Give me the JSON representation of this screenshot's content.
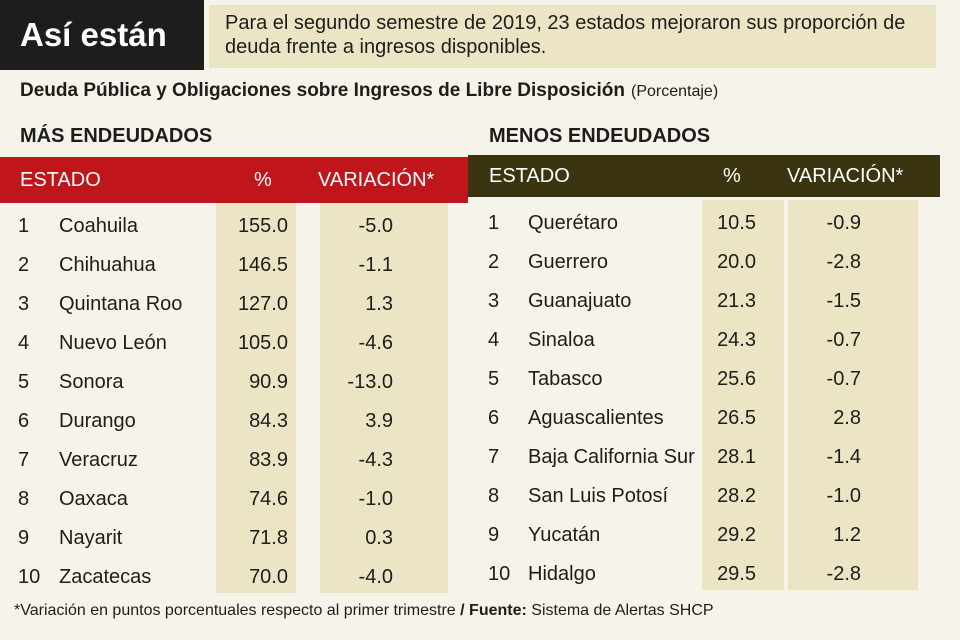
{
  "header": {
    "title": "Así están",
    "note": "Para el segundo semestre de 2019, 23 estados mejoraron sus proporción de deuda frente a ingresos disponibles."
  },
  "subtitle": {
    "text": "Deuda Pública y Obligaciones sobre Ingresos de Libre Disposición",
    "unit": "(Porcentaje)"
  },
  "colors": {
    "left_header": "#c0161b",
    "right_header": "#3a3510",
    "column_fill": "#ece5c5"
  },
  "left": {
    "title": "MÁS ENDEUDADOS",
    "headers": {
      "estado": "ESTADO",
      "pct": "%",
      "var": "VARIACIÓN*"
    },
    "rows": [
      {
        "rank": "1",
        "estado": "Coahuila",
        "pct": "155.0",
        "var": "-5.0"
      },
      {
        "rank": "2",
        "estado": "Chihuahua",
        "pct": "146.5",
        "var": "-1.1"
      },
      {
        "rank": "3",
        "estado": "Quintana Roo",
        "pct": "127.0",
        "var": "1.3"
      },
      {
        "rank": "4",
        "estado": "Nuevo León",
        "pct": "105.0",
        "var": "-4.6"
      },
      {
        "rank": "5",
        "estado": "Sonora",
        "pct": "90.9",
        "var": "-13.0"
      },
      {
        "rank": "6",
        "estado": "Durango",
        "pct": "84.3",
        "var": "3.9"
      },
      {
        "rank": "7",
        "estado": "Veracruz",
        "pct": "83.9",
        "var": "-4.3"
      },
      {
        "rank": "8",
        "estado": "Oaxaca",
        "pct": "74.6",
        "var": "-1.0"
      },
      {
        "rank": "9",
        "estado": "Nayarit",
        "pct": "71.8",
        "var": "0.3"
      },
      {
        "rank": "10",
        "estado": "Zacatecas",
        "pct": "70.0",
        "var": "-4.0"
      }
    ]
  },
  "right": {
    "title": "MENOS ENDEUDADOS",
    "headers": {
      "estado": "ESTADO",
      "pct": "%",
      "var": "VARIACIÓN*"
    },
    "rows": [
      {
        "rank": "1",
        "estado": "Querétaro",
        "pct": "10.5",
        "var": "-0.9"
      },
      {
        "rank": "2",
        "estado": "Guerrero",
        "pct": "20.0",
        "var": "-2.8"
      },
      {
        "rank": "3",
        "estado": "Guanajuato",
        "pct": "21.3",
        "var": "-1.5"
      },
      {
        "rank": "4",
        "estado": "Sinaloa",
        "pct": "24.3",
        "var": "-0.7"
      },
      {
        "rank": "5",
        "estado": "Tabasco",
        "pct": "25.6",
        "var": "-0.7"
      },
      {
        "rank": "6",
        "estado": "Aguascalientes",
        "pct": "26.5",
        "var": "2.8"
      },
      {
        "rank": "7",
        "estado": "Baja California Sur",
        "pct": "28.1",
        "var": "-1.4"
      },
      {
        "rank": "8",
        "estado": "San Luis Potosí",
        "pct": "28.2",
        "var": "-1.0"
      },
      {
        "rank": "9",
        "estado": "Yucatán",
        "pct": "29.2",
        "var": "1.2"
      },
      {
        "rank": "10",
        "estado": "Hidalgo",
        "pct": "29.5",
        "var": "-2.8"
      }
    ]
  },
  "footnote": {
    "note": "*Variación en puntos porcentuales respecto al primer trimestre",
    "sep": " / ",
    "source_label": "Fuente:",
    "source": " Sistema de Alertas SHCP"
  }
}
